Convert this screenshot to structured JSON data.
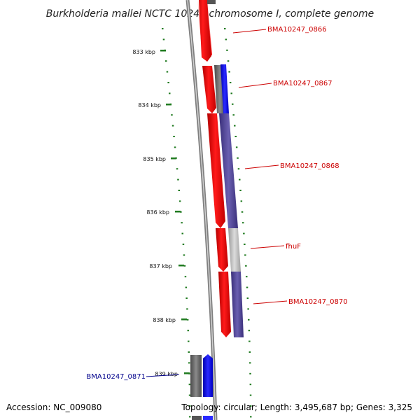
{
  "title": "Burkholderia mallei NCTC 10247 chromosome I, complete genome",
  "footer": {
    "accession": "Accession: NC_009080",
    "topology": "Topology: circular; Length: 3,495,687 bp; Genes: 3,325"
  },
  "colors": {
    "forward_strand": "#ff0000",
    "reverse_strand": "#4b3f94",
    "forward_label": "#cc0000",
    "reverse_label": "#00008b",
    "tick": "#1f7a1f",
    "backbone": "#7f7f7f"
  },
  "ticks": [
    {
      "label": "833 kbp"
    },
    {
      "label": "834 kbp"
    },
    {
      "label": "835 kbp"
    },
    {
      "label": "836 kbp"
    },
    {
      "label": "837 kbp"
    },
    {
      "label": "838 kbp"
    },
    {
      "label": "839 kbp"
    }
  ],
  "genes": [
    {
      "label": "BMA10247_0866",
      "strand": "forward"
    },
    {
      "label": "BMA10247_0867",
      "strand": "reverse"
    },
    {
      "label": "BMA10247_0868",
      "strand": "reverse"
    },
    {
      "label": "fhuF",
      "strand": "reverse"
    },
    {
      "label": "BMA10247_0870",
      "strand": "reverse"
    },
    {
      "label": "BMA10247_0871",
      "strand": "forward"
    }
  ]
}
